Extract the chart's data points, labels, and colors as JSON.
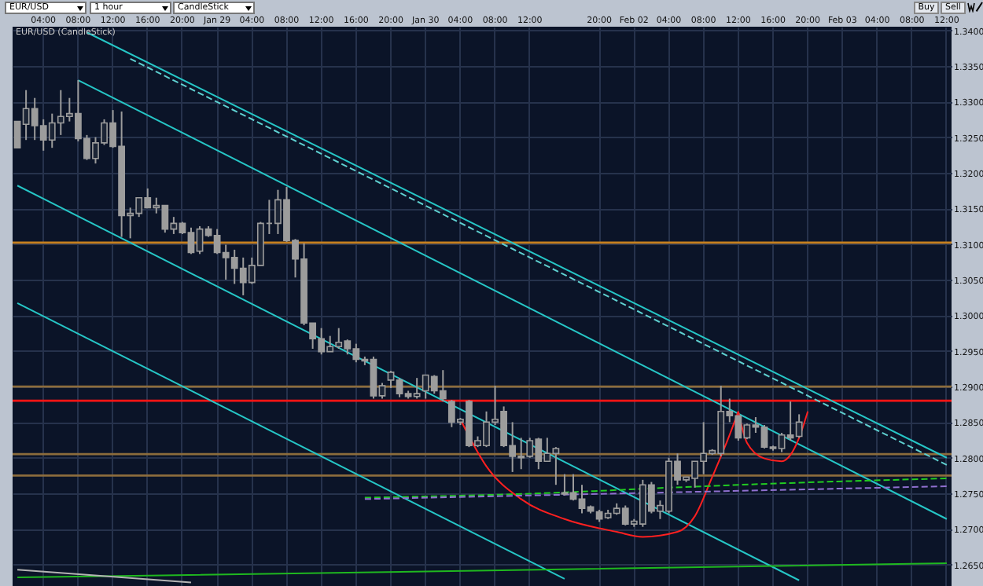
{
  "chart_data": {
    "type": "candlestick",
    "title": "EUR/USD (CandleStick)",
    "annotations": [
      "EUR/USD",
      "1 hour",
      "CandleStick",
      "Buy",
      "Sell"
    ],
    "color": "#9c9c9c",
    "grid": true,
    "categories": [
      null,
      null,
      null,
      "04:00",
      null,
      null,
      null,
      "08:00",
      null,
      null,
      null,
      "12:00",
      null,
      null,
      null,
      "16:00",
      null,
      null,
      null,
      "20:00",
      null,
      null,
      null,
      "Jan 29",
      null,
      null,
      null,
      "04:00",
      null,
      null,
      null,
      "08:00",
      null,
      null,
      null,
      "12:00",
      null,
      null,
      null,
      "16:00",
      null,
      null,
      null,
      "20:00",
      null,
      null,
      null,
      "Jan 30",
      null,
      null,
      null,
      "04:00",
      null,
      null,
      null,
      "08:00",
      null,
      null,
      null,
      "12:00",
      null,
      null,
      null,
      null,
      null,
      null,
      null,
      "20:00",
      null,
      null,
      null,
      "Feb 02",
      null,
      null,
      null,
      "04:00",
      null,
      null,
      null,
      "08:00",
      null,
      null,
      null,
      "12:00",
      null,
      null,
      null,
      "16:00",
      null,
      null,
      null,
      "20:00",
      null,
      null,
      null,
      "Feb 03",
      null,
      null,
      null,
      "04:00",
      null,
      null,
      null,
      "08:00",
      null,
      null,
      null,
      "12:00"
    ],
    "ylim": [
      1.262,
      1.3405
    ],
    "yticks": [
      {
        "value": 1.265,
        "label": "1.2650"
      },
      {
        "value": 1.27,
        "label": "1.2700"
      },
      {
        "value": 1.275,
        "label": "1.2750"
      },
      {
        "value": 1.28,
        "label": "1.2800"
      },
      {
        "value": 1.285,
        "label": "1.2850"
      },
      {
        "value": 1.29,
        "label": "1.2900"
      },
      {
        "value": 1.295,
        "label": "1.2950"
      },
      {
        "value": 1.3,
        "label": "1.3000"
      },
      {
        "value": 1.305,
        "label": "1.3050"
      },
      {
        "value": 1.31,
        "label": "1.3100"
      },
      {
        "value": 1.315,
        "label": "1.3150"
      },
      {
        "value": 1.32,
        "label": "1.3200"
      },
      {
        "value": 1.325,
        "label": "1.3250"
      },
      {
        "value": 1.33,
        "label": "1.3300"
      },
      {
        "value": 1.335,
        "label": "1.3350"
      },
      {
        "value": 1.34,
        "label": "1.3400"
      }
    ],
    "ohlc": [
      [
        1.3272,
        1.3272,
        1.3235,
        1.3235
      ],
      [
        1.3268,
        1.3316,
        1.3246,
        1.329
      ],
      [
        1.329,
        1.3305,
        1.3246,
        1.3266
      ],
      [
        1.3266,
        1.3275,
        1.3231,
        1.3246
      ],
      [
        1.3246,
        1.3283,
        1.3235,
        1.327
      ],
      [
        1.327,
        1.3316,
        1.3253,
        1.3279
      ],
      [
        1.3279,
        1.3305,
        1.3272,
        1.3283
      ],
      [
        1.3283,
        1.333,
        1.3244,
        1.3248
      ],
      [
        1.3248,
        1.3253,
        1.3218,
        1.322
      ],
      [
        1.322,
        1.325,
        1.3213,
        1.3242
      ],
      [
        1.3242,
        1.3275,
        1.3239,
        1.327
      ],
      [
        1.327,
        1.3288,
        1.3235,
        1.3237
      ],
      [
        1.3237,
        1.3286,
        1.311,
        1.314
      ],
      [
        1.314,
        1.3151,
        1.3108,
        1.3143
      ],
      [
        1.3143,
        1.3165,
        1.3138,
        1.3165
      ],
      [
        1.3165,
        1.3178,
        1.3151,
        1.3151
      ],
      [
        1.3151,
        1.3165,
        1.3143,
        1.3154
      ],
      [
        1.3154,
        1.3154,
        1.3116,
        1.3121
      ],
      [
        1.3121,
        1.3138,
        1.3114,
        1.3129
      ],
      [
        1.3129,
        1.3131,
        1.3114,
        1.3116
      ],
      [
        1.3116,
        1.3123,
        1.3086,
        1.3088
      ],
      [
        1.309,
        1.3125,
        1.3086,
        1.3121
      ],
      [
        1.3121,
        1.3125,
        1.311,
        1.3112
      ],
      [
        1.3112,
        1.3121,
        1.3086,
        1.3088
      ],
      [
        1.3088,
        1.3099,
        1.305,
        1.3081
      ],
      [
        1.3081,
        1.3092,
        1.3044,
        1.3066
      ],
      [
        1.3066,
        1.3081,
        1.3028,
        1.3046
      ],
      [
        1.3046,
        1.3081,
        1.3044,
        1.307
      ],
      [
        1.307,
        1.3131,
        1.307,
        1.3129
      ],
      [
        1.3129,
        1.3162,
        1.3114,
        1.3129
      ],
      [
        1.3129,
        1.3176,
        1.3114,
        1.3162
      ],
      [
        1.3162,
        1.318,
        1.3103,
        1.3105
      ],
      [
        1.3105,
        1.3107,
        1.3053,
        1.3079
      ],
      [
        1.3079,
        1.3101,
        1.2986,
        1.2989
      ],
      [
        1.2989,
        1.2989,
        1.2953,
        1.2967
      ],
      [
        1.2967,
        1.2982,
        1.2945,
        1.2949
      ],
      [
        1.2949,
        1.2971,
        1.2949,
        1.2956
      ],
      [
        1.2956,
        1.2982,
        1.2953,
        1.2962
      ],
      [
        1.2964,
        1.2966,
        1.2945,
        1.2953
      ],
      [
        1.2953,
        1.296,
        1.2934,
        1.2938
      ],
      [
        1.2938,
        1.2942,
        1.293,
        1.2936
      ],
      [
        1.2938,
        1.2942,
        1.2883,
        1.2887
      ],
      [
        1.2887,
        1.2905,
        1.2883,
        1.2901
      ],
      [
        1.2909,
        1.2922,
        1.2898,
        1.292
      ],
      [
        1.2909,
        1.2912,
        1.2885,
        1.289
      ],
      [
        1.289,
        1.2894,
        1.2883,
        1.2886
      ],
      [
        1.2886,
        1.2912,
        1.2883,
        1.289
      ],
      [
        1.2894,
        1.2916,
        1.2883,
        1.2916
      ],
      [
        1.2914,
        1.2916,
        1.289,
        1.2894
      ],
      [
        1.2894,
        1.2923,
        1.2879,
        1.2883
      ],
      [
        1.2879,
        1.2881,
        1.2843,
        1.285
      ],
      [
        1.285,
        1.2856,
        1.2846,
        1.2854
      ],
      [
        1.2879,
        1.2881,
        1.2815,
        1.2817
      ],
      [
        1.2817,
        1.283,
        1.2815,
        1.2824
      ],
      [
        1.2817,
        1.2865,
        1.2815,
        1.285
      ],
      [
        1.285,
        1.2901,
        1.2846,
        1.2854
      ],
      [
        1.2865,
        1.2872,
        1.2815,
        1.2817
      ],
      [
        1.2817,
        1.285,
        1.278,
        1.2802
      ],
      [
        1.2802,
        1.2828,
        1.2784,
        1.28
      ],
      [
        1.2802,
        1.2828,
        1.28,
        1.2824
      ],
      [
        1.2826,
        1.2828,
        1.2784,
        1.2795
      ],
      [
        1.2795,
        1.2828,
        1.2795,
        1.2806
      ],
      [
        1.2806,
        1.2815,
        1.2762,
        1.2813
      ],
      [
        1.2751,
        1.2777,
        1.2747,
        1.2749
      ],
      [
        1.2751,
        1.2777,
        1.274,
        1.2742
      ],
      [
        1.2742,
        1.2762,
        1.2722,
        1.2729
      ],
      [
        1.2731,
        1.2733,
        1.2722,
        1.2725
      ],
      [
        1.2724,
        1.2727,
        1.271,
        1.2714
      ],
      [
        1.2716,
        1.2727,
        1.2714,
        1.2722
      ],
      [
        1.2722,
        1.2736,
        1.272,
        1.2729
      ],
      [
        1.2729,
        1.2733,
        1.2705,
        1.2707
      ],
      [
        1.2707,
        1.2714,
        1.2703,
        1.2711
      ],
      [
        1.2707,
        1.2769,
        1.2703,
        1.2762
      ],
      [
        1.2762,
        1.2766,
        1.2722,
        1.2725
      ],
      [
        1.2725,
        1.274,
        1.2714,
        1.2733
      ],
      [
        1.2725,
        1.28,
        1.2722,
        1.2795
      ],
      [
        1.2795,
        1.2806,
        1.2762,
        1.2769
      ],
      [
        1.2769,
        1.2773,
        1.2766,
        1.2773
      ],
      [
        1.2771,
        1.2795,
        1.2758,
        1.2795
      ],
      [
        1.2795,
        1.285,
        1.2777,
        1.2806
      ],
      [
        1.2806,
        1.2812,
        1.2804,
        1.281
      ],
      [
        1.2806,
        1.2901,
        1.2802,
        1.2865
      ],
      [
        1.2865,
        1.2883,
        1.285,
        1.2859
      ],
      [
        1.2859,
        1.2859,
        1.2824,
        1.2828
      ],
      [
        1.2828,
        1.2848,
        1.2826,
        1.2846
      ],
      [
        1.2846,
        1.2857,
        1.2835,
        1.2843
      ],
      [
        1.2843,
        1.2846,
        1.2813,
        1.2815
      ],
      [
        1.2815,
        1.2817,
        1.281,
        1.2813
      ],
      [
        1.2813,
        1.2835,
        1.2808,
        1.2832
      ],
      [
        1.2832,
        1.2879,
        1.2824,
        1.2828
      ],
      [
        1.283,
        1.2861,
        1.2828,
        1.285
      ],
      null,
      null,
      null,
      null,
      null,
      null,
      null,
      null,
      null,
      null,
      null,
      null,
      null,
      null,
      null,
      null,
      null
    ],
    "series": [
      {
        "type": "line",
        "color": "#26c6c6",
        "values": [
          null,
          null,
          null,
          null,
          null,
          null,
          null,
          null,
          1.3397,
          null,
          null,
          null,
          null,
          null,
          null,
          null,
          null,
          null,
          null,
          null,
          null,
          null,
          null,
          null,
          null,
          null,
          null,
          null,
          null,
          null,
          null,
          null,
          null,
          null,
          null,
          null,
          null,
          null,
          null,
          null,
          null,
          null,
          null,
          null,
          null,
          null,
          null,
          null,
          null,
          null,
          null,
          null,
          null,
          null,
          null,
          null,
          null,
          null,
          null,
          null,
          null,
          null,
          null,
          null,
          null,
          null,
          null,
          null,
          null,
          null,
          null,
          null,
          null,
          null,
          null,
          null,
          null,
          null,
          null,
          null,
          null,
          null,
          null,
          null,
          null,
          null,
          null,
          null,
          null,
          null,
          null,
          null,
          null,
          null,
          null,
          null,
          null,
          null,
          null,
          null,
          null,
          null,
          null,
          null,
          null,
          null,
          null,
          1.28
        ]
      },
      {
        "type": "line",
        "color": "#5fd0d0",
        "line_style": "dashed",
        "values": [
          null,
          null,
          null,
          null,
          null,
          null,
          null,
          null,
          null,
          null,
          null,
          null,
          null,
          1.336,
          null,
          null,
          null,
          null,
          null,
          null,
          null,
          null,
          null,
          null,
          null,
          null,
          null,
          null,
          null,
          null,
          null,
          null,
          null,
          null,
          null,
          null,
          null,
          null,
          null,
          null,
          null,
          null,
          null,
          null,
          null,
          null,
          null,
          null,
          null,
          null,
          null,
          null,
          null,
          null,
          null,
          null,
          null,
          null,
          null,
          null,
          null,
          null,
          null,
          null,
          null,
          null,
          null,
          null,
          null,
          null,
          null,
          null,
          null,
          null,
          null,
          null,
          null,
          null,
          null,
          null,
          null,
          null,
          null,
          null,
          null,
          null,
          null,
          null,
          null,
          null,
          null,
          null,
          null,
          null,
          null,
          null,
          null,
          null,
          null,
          null,
          null,
          null,
          null,
          null,
          null,
          null,
          null,
          1.279
        ]
      },
      {
        "type": "line",
        "color": "#26c6c6",
        "values": [
          null,
          null,
          null,
          null,
          null,
          null,
          null,
          1.333,
          null,
          null,
          null,
          null,
          null,
          null,
          null,
          null,
          null,
          null,
          null,
          null,
          null,
          null,
          null,
          null,
          null,
          null,
          null,
          null,
          null,
          null,
          null,
          null,
          null,
          null,
          null,
          null,
          null,
          null,
          null,
          null,
          null,
          null,
          null,
          null,
          null,
          null,
          null,
          null,
          null,
          null,
          null,
          null,
          null,
          null,
          null,
          null,
          null,
          null,
          null,
          null,
          null,
          null,
          null,
          null,
          null,
          null,
          null,
          null,
          null,
          null,
          null,
          null,
          null,
          null,
          null,
          null,
          null,
          null,
          null,
          null,
          null,
          null,
          null,
          null,
          null,
          null,
          null,
          null,
          null,
          null,
          null,
          null,
          null,
          null,
          null,
          null,
          null,
          null,
          null,
          null,
          null,
          null,
          null,
          null,
          null,
          null,
          null,
          1.2714
        ]
      },
      {
        "type": "line",
        "color": "#26c6c6",
        "values": [
          1.3182,
          null,
          null,
          null,
          null,
          null,
          null,
          null,
          null,
          null,
          null,
          null,
          null,
          null,
          null,
          null,
          null,
          null,
          null,
          null,
          null,
          null,
          null,
          null,
          null,
          null,
          null,
          null,
          null,
          null,
          null,
          null,
          null,
          null,
          null,
          null,
          null,
          null,
          null,
          null,
          null,
          null,
          null,
          null,
          null,
          null,
          null,
          null,
          null,
          null,
          null,
          null,
          null,
          null,
          null,
          null,
          null,
          null,
          null,
          null,
          null,
          null,
          null,
          null,
          null,
          null,
          null,
          null,
          null,
          null,
          null,
          null,
          null,
          null,
          null,
          null,
          null,
          null,
          null,
          null,
          null,
          null,
          null,
          null,
          null,
          null,
          null,
          null,
          null,
          null,
          1.2628,
          null,
          null,
          null,
          null,
          null,
          null,
          null,
          null,
          null,
          null,
          null,
          null,
          null,
          null,
          null,
          null,
          null
        ]
      },
      {
        "type": "line",
        "color": "#26c6c6",
        "values": [
          1.3017,
          null,
          null,
          null,
          null,
          null,
          null,
          null,
          null,
          null,
          null,
          null,
          null,
          null,
          null,
          null,
          null,
          null,
          null,
          null,
          null,
          null,
          null,
          null,
          null,
          null,
          null,
          null,
          null,
          null,
          null,
          null,
          null,
          null,
          null,
          null,
          null,
          null,
          null,
          null,
          null,
          null,
          null,
          null,
          null,
          null,
          null,
          null,
          null,
          null,
          null,
          null,
          null,
          null,
          null,
          null,
          null,
          null,
          null,
          null,
          null,
          null,
          null,
          1.263,
          null,
          null,
          null,
          null,
          null,
          null,
          null,
          null,
          null,
          null,
          null,
          null,
          null,
          null,
          null,
          null,
          null,
          null,
          null,
          null,
          null,
          null,
          null,
          null,
          null,
          null,
          null,
          null,
          null,
          null,
          null,
          null,
          null,
          null,
          null,
          null,
          null,
          null,
          null,
          null,
          null,
          null,
          null,
          null
        ]
      },
      {
        "type": "line",
        "color": "#ff2020",
        "values": [
          null,
          null,
          null,
          null,
          null,
          null,
          null,
          null,
          null,
          null,
          null,
          null,
          null,
          null,
          null,
          null,
          null,
          null,
          null,
          null,
          null,
          null,
          null,
          null,
          null,
          null,
          null,
          null,
          null,
          null,
          null,
          null,
          null,
          null,
          null,
          null,
          null,
          null,
          null,
          null,
          null,
          null,
          null,
          null,
          null,
          null,
          null,
          null,
          null,
          null,
          null,
          1.2854,
          null,
          null,
          1.2788,
          null,
          null,
          null,
          1.2742,
          null,
          null,
          null,
          null,
          1.2714,
          null,
          null,
          null,
          null,
          null,
          1.2696,
          null,
          null,
          1.2689,
          null,
          null,
          null,
          1.2696,
          null,
          1.2718,
          null,
          1.2773,
          null,
          1.2832,
          1.2865,
          null,
          null,
          null,
          null,
          null,
          null,
          null,
          null,
          null,
          null,
          null,
          null,
          null,
          null,
          null,
          null,
          null,
          null,
          null,
          null,
          null,
          null,
          null,
          null
        ]
      },
      {
        "type": "line",
        "color": "#ff2020",
        "values": [
          null,
          null,
          null,
          null,
          null,
          null,
          null,
          null,
          null,
          null,
          null,
          null,
          null,
          null,
          null,
          null,
          null,
          null,
          null,
          null,
          null,
          null,
          null,
          null,
          null,
          null,
          null,
          null,
          null,
          null,
          null,
          null,
          null,
          null,
          null,
          null,
          null,
          null,
          null,
          null,
          null,
          null,
          null,
          null,
          null,
          null,
          null,
          null,
          null,
          null,
          null,
          null,
          null,
          null,
          null,
          null,
          null,
          null,
          null,
          null,
          null,
          null,
          null,
          null,
          null,
          null,
          null,
          null,
          null,
          null,
          null,
          null,
          null,
          null,
          null,
          null,
          null,
          null,
          null,
          null,
          null,
          null,
          null,
          1.2865,
          1.2821,
          null,
          1.2799,
          null,
          1.2795,
          1.2804,
          1.2828,
          1.2865,
          null,
          null,
          null,
          null,
          null,
          null,
          null,
          null,
          null,
          null,
          null,
          null,
          null,
          null,
          null,
          null
        ]
      },
      {
        "type": "line",
        "color": "#22cc22",
        "line_style": "dashed",
        "values": [
          null,
          null,
          null,
          null,
          null,
          null,
          null,
          null,
          null,
          null,
          null,
          null,
          null,
          null,
          null,
          null,
          null,
          null,
          null,
          null,
          null,
          null,
          null,
          null,
          null,
          null,
          null,
          null,
          null,
          null,
          null,
          null,
          null,
          null,
          null,
          null,
          null,
          null,
          null,
          null,
          1.2744,
          null,
          null,
          null,
          null,
          null,
          null,
          null,
          null,
          null,
          null,
          null,
          null,
          null,
          null,
          null,
          null,
          null,
          null,
          null,
          1.275,
          null,
          null,
          null,
          null,
          null,
          null,
          null,
          null,
          null,
          null,
          null,
          null,
          null,
          null,
          1.2758,
          null,
          null,
          null,
          null,
          null,
          null,
          null,
          null,
          null,
          null,
          null,
          null,
          null,
          null,
          1.2765,
          null,
          null,
          null,
          null,
          null,
          null,
          null,
          null,
          null,
          null,
          null,
          null,
          null,
          null,
          null,
          null,
          1.2771
        ]
      },
      {
        "type": "line",
        "color": "#9070d0",
        "line_style": "dashed",
        "values": [
          null,
          null,
          null,
          null,
          null,
          null,
          null,
          null,
          null,
          null,
          null,
          null,
          null,
          null,
          null,
          null,
          null,
          null,
          null,
          null,
          null,
          null,
          null,
          null,
          null,
          null,
          null,
          null,
          null,
          null,
          null,
          null,
          null,
          null,
          null,
          null,
          null,
          null,
          null,
          null,
          1.2742,
          null,
          null,
          null,
          null,
          null,
          null,
          null,
          null,
          null,
          null,
          null,
          null,
          null,
          null,
          null,
          null,
          null,
          null,
          null,
          null,
          null,
          null,
          null,
          null,
          null,
          null,
          null,
          null,
          null,
          null,
          null,
          null,
          null,
          null,
          null,
          null,
          null,
          null,
          null,
          null,
          null,
          null,
          null,
          null,
          null,
          null,
          null,
          null,
          null,
          null,
          null,
          null,
          null,
          null,
          null,
          null,
          null,
          null,
          null,
          null,
          null,
          null,
          null,
          null,
          null,
          null,
          1.276
        ]
      },
      {
        "type": "line",
        "color": "#1fb81f",
        "values": [
          1.2632,
          null,
          null,
          null,
          null,
          null,
          null,
          null,
          null,
          null,
          null,
          null,
          null,
          null,
          null,
          null,
          null,
          null,
          null,
          null,
          null,
          null,
          null,
          null,
          null,
          null,
          null,
          null,
          null,
          null,
          null,
          null,
          null,
          null,
          null,
          null,
          null,
          null,
          null,
          null,
          null,
          null,
          null,
          null,
          null,
          null,
          null,
          null,
          null,
          null,
          1.2641,
          null,
          null,
          null,
          null,
          null,
          null,
          null,
          null,
          null,
          null,
          null,
          null,
          null,
          null,
          null,
          null,
          null,
          null,
          null,
          null,
          null,
          null,
          null,
          null,
          null,
          null,
          null,
          null,
          null,
          null,
          null,
          null,
          null,
          null,
          null,
          null,
          null,
          null,
          null,
          null,
          null,
          null,
          null,
          null,
          null,
          null,
          null,
          null,
          null,
          null,
          null,
          null,
          null,
          null,
          null,
          null,
          1.2652
        ]
      },
      {
        "type": "line",
        "color": "#b4b4b4",
        "values": [
          1.2643,
          null,
          null,
          null,
          null,
          null,
          null,
          null,
          null,
          null,
          null,
          null,
          null,
          null,
          null,
          null,
          null,
          null,
          null,
          null,
          1.2625,
          null,
          null,
          null,
          null,
          null,
          null,
          null,
          null,
          null,
          null,
          null,
          null,
          null,
          null,
          null,
          null,
          null,
          null,
          null,
          null,
          null,
          null,
          null,
          null,
          null,
          null,
          null,
          null,
          null,
          null,
          null,
          null,
          null,
          null,
          null,
          null,
          null,
          null,
          null,
          null,
          null,
          null,
          null,
          null,
          null,
          null,
          null,
          null,
          null,
          null,
          null,
          null,
          null,
          null,
          null,
          null,
          null,
          null,
          null,
          null,
          null,
          null,
          null,
          null,
          null,
          null,
          null,
          null,
          null,
          null,
          null,
          null,
          null,
          null,
          null,
          null,
          null,
          null,
          null,
          null,
          null,
          null,
          null,
          null,
          null,
          null,
          null
        ]
      }
    ],
    "ref_lines": [
      {
        "axis": "y",
        "value": 1.3102,
        "color": "#c8801e"
      },
      {
        "axis": "y",
        "value": 1.29,
        "color": "#8c6c3c"
      },
      {
        "axis": "y",
        "value": 1.288,
        "color": "#ff1414"
      },
      {
        "axis": "y",
        "value": 1.2805,
        "color": "#8c6c3c"
      },
      {
        "axis": "y",
        "value": 1.2775,
        "color": "#8c6c3c"
      }
    ]
  }
}
